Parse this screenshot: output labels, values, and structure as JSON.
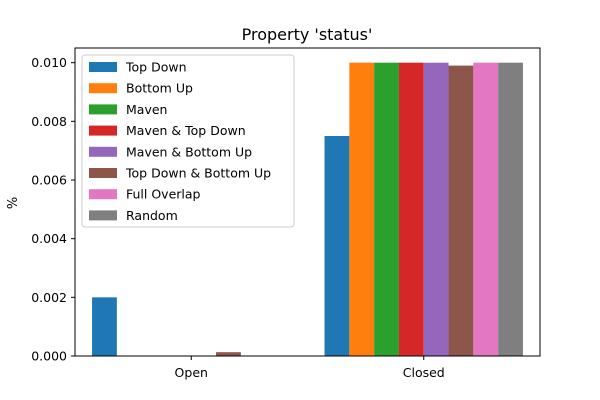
{
  "chart_data": {
    "type": "bar",
    "title": "Property 'status'",
    "xlabel": "",
    "ylabel": "%",
    "categories": [
      "Open",
      "Closed"
    ],
    "ylim": [
      0,
      0.0105
    ],
    "yticks": [
      "0.000",
      "0.002",
      "0.004",
      "0.006",
      "0.008",
      "0.010"
    ],
    "ytick_values": [
      0,
      0.002,
      0.004,
      0.006,
      0.008,
      0.01
    ],
    "grid": false,
    "legend_position": "top-left",
    "series": [
      {
        "name": "Top Down",
        "color": "#1f77b4",
        "values": [
          0.002,
          0.0075
        ]
      },
      {
        "name": "Bottom Up",
        "color": "#ff7f0e",
        "values": [
          0.0,
          0.01
        ]
      },
      {
        "name": "Maven",
        "color": "#2ca02c",
        "values": [
          0.0,
          0.01
        ]
      },
      {
        "name": "Maven & Top Down",
        "color": "#d62728",
        "values": [
          0.0,
          0.01
        ]
      },
      {
        "name": "Maven & Bottom Up",
        "color": "#9467bd",
        "values": [
          0.0,
          0.01
        ]
      },
      {
        "name": "Top Down & Bottom Up",
        "color": "#8c564b",
        "values": [
          0.00013,
          0.0099
        ]
      },
      {
        "name": "Full Overlap",
        "color": "#e377c2",
        "values": [
          0.0,
          0.01
        ]
      },
      {
        "name": "Random",
        "color": "#7f7f7f",
        "values": [
          0.0,
          0.01
        ]
      }
    ]
  }
}
